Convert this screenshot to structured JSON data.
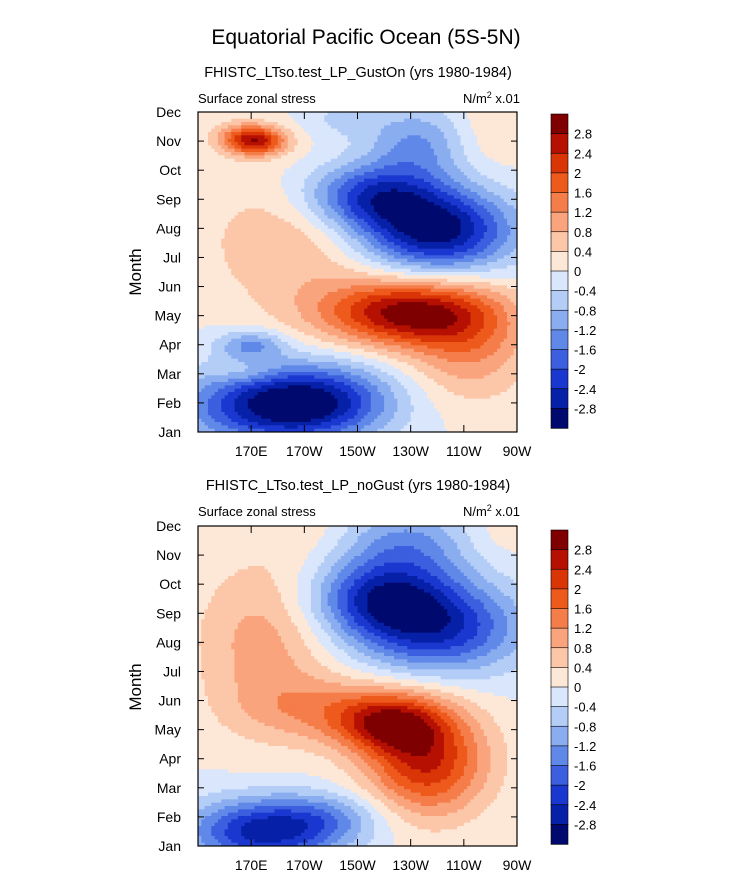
{
  "figure_title": "Equatorial Pacific Ocean (5S-5N)",
  "colorbar": {
    "levels": [
      "2.8",
      "2.4",
      "2",
      "1.6",
      "1.2",
      "0.8",
      "0.4",
      "0",
      "-0.4",
      "-0.8",
      "-1.2",
      "-1.6",
      "-2",
      "-2.4",
      "-2.8"
    ],
    "colors": [
      "#7f0000",
      "#b51002",
      "#d93507",
      "#ee5a1c",
      "#f57d4a",
      "#f9a47c",
      "#fcc6a8",
      "#fde8d8",
      "#d9e6fb",
      "#b3cdf7",
      "#8aadf0",
      "#6088e8",
      "#3b5fdf",
      "#1a38d0",
      "#0720a8",
      "#000a6e"
    ]
  },
  "chart_data": [
    {
      "type": "heatmap",
      "subtitle": "FHISTC_LTso.test_LP_GustOn (yrs 1980-1984)",
      "left_label": "Surface zonal stress",
      "units_label": "N/m",
      "units_sup": "2",
      "units_suffix": " x.01",
      "ylabel": "Month",
      "yticks": [
        "Jan",
        "Feb",
        "Mar",
        "Apr",
        "May",
        "Jun",
        "Jul",
        "Aug",
        "Sep",
        "Oct",
        "Nov",
        "Dec"
      ],
      "xticks": [
        "170E",
        "170W",
        "150W",
        "130W",
        "110W",
        "90W"
      ],
      "xtick_lons": [
        170,
        190,
        210,
        230,
        250,
        270
      ],
      "xlim_lon": [
        150,
        270
      ],
      "features": [
        {
          "lon": 180,
          "month": 0.9,
          "sx": 24,
          "sy": 0.9,
          "amp": -2.9
        },
        {
          "lon": 200,
          "month": 1.2,
          "sx": 18,
          "sy": 0.9,
          "amp": -1.0
        },
        {
          "lon": 170,
          "month": 3.0,
          "sx": 9,
          "sy": 0.35,
          "amp": -1.2
        },
        {
          "lon": 168,
          "month": 2.0,
          "sx": 8,
          "sy": 0.25,
          "amp": 0.4
        },
        {
          "lon": 228,
          "month": 4.1,
          "sx": 22,
          "sy": 0.8,
          "amp": 2.9
        },
        {
          "lon": 252,
          "month": 3.0,
          "sx": 16,
          "sy": 1.3,
          "amp": 1.2
        },
        {
          "lon": 185,
          "month": 6.5,
          "sx": 22,
          "sy": 1.6,
          "amp": 0.8
        },
        {
          "lon": 172,
          "month": 10.0,
          "sx": 8,
          "sy": 0.35,
          "amp": 2.4
        },
        {
          "lon": 165,
          "month": 10.2,
          "sx": 8,
          "sy": 0.4,
          "amp": 0.6
        },
        {
          "lon": 240,
          "month": 6.9,
          "sx": 20,
          "sy": 1.0,
          "amp": -3.0
        },
        {
          "lon": 215,
          "month": 8.1,
          "sx": 18,
          "sy": 0.8,
          "amp": -2.2
        },
        {
          "lon": 232,
          "month": 9.9,
          "sx": 13,
          "sy": 0.9,
          "amp": -1.2
        },
        {
          "lon": 262,
          "month": 10.5,
          "sx": 10,
          "sy": 1.0,
          "amp": 0.4
        },
        {
          "lon": 205,
          "month": 10.8,
          "sx": 10,
          "sy": 0.5,
          "amp": -0.5
        }
      ]
    },
    {
      "type": "heatmap",
      "subtitle": "FHISTC_LTso.test_LP_noGust (yrs 1980-1984)",
      "left_label": "Surface zonal stress",
      "units_label": "N/m",
      "units_sup": "2",
      "units_suffix": " x.01",
      "ylabel": "Month",
      "yticks": [
        "Jan",
        "Feb",
        "Mar",
        "Apr",
        "May",
        "Jun",
        "Jul",
        "Aug",
        "Sep",
        "Oct",
        "Nov",
        "Dec"
      ],
      "xticks": [
        "170E",
        "170W",
        "150W",
        "130W",
        "110W",
        "90W"
      ],
      "xtick_lons": [
        170,
        190,
        210,
        230,
        250,
        270
      ],
      "xlim_lon": [
        150,
        270
      ],
      "features": [
        {
          "lon": 175,
          "month": 0.5,
          "sx": 20,
          "sy": 0.8,
          "amp": -2.6
        },
        {
          "lon": 200,
          "month": 1.0,
          "sx": 15,
          "sy": 0.6,
          "amp": -0.8
        },
        {
          "lon": 236,
          "month": 2.9,
          "sx": 16,
          "sy": 1.3,
          "amp": 2.4
        },
        {
          "lon": 222,
          "month": 4.2,
          "sx": 14,
          "sy": 0.7,
          "amp": 2.0
        },
        {
          "lon": 200,
          "month": 4.7,
          "sx": 22,
          "sy": 0.8,
          "amp": 1.0
        },
        {
          "lon": 175,
          "month": 7.0,
          "sx": 18,
          "sy": 2.0,
          "amp": 1.0
        },
        {
          "lon": 190,
          "month": 11.0,
          "sx": 14,
          "sy": 0.8,
          "amp": 0.3
        },
        {
          "lon": 240,
          "month": 7.5,
          "sx": 22,
          "sy": 1.1,
          "amp": -2.4
        },
        {
          "lon": 218,
          "month": 8.5,
          "sx": 18,
          "sy": 0.9,
          "amp": -2.0
        },
        {
          "lon": 228,
          "month": 10.3,
          "sx": 18,
          "sy": 1.0,
          "amp": -1.3
        },
        {
          "lon": 262,
          "month": 10.8,
          "sx": 10,
          "sy": 0.8,
          "amp": 0.3
        }
      ]
    }
  ]
}
